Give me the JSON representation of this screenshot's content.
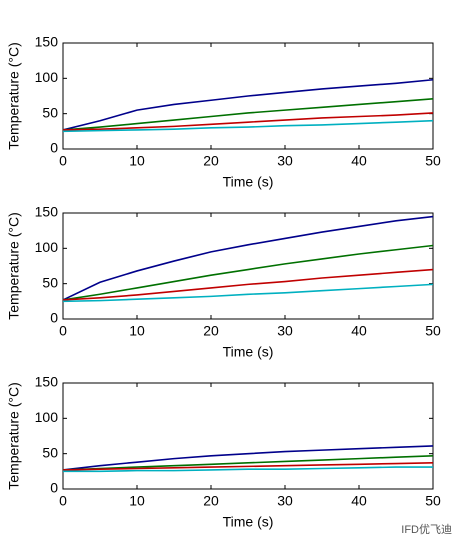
{
  "chart_data": [
    {
      "type": "line",
      "x": [
        0,
        5,
        10,
        15,
        20,
        25,
        30,
        35,
        40,
        45,
        50
      ],
      "xlabel": "Time (s)",
      "ylabel": "Temperature (°C)",
      "xlim": [
        0,
        50
      ],
      "xticks": [
        0,
        10,
        20,
        30,
        40,
        50
      ],
      "ylim": [
        0,
        150
      ],
      "yticks": [
        0,
        50,
        100,
        150
      ],
      "series": [
        {
          "color": "#00008b",
          "values": [
            27,
            40,
            55,
            63,
            69,
            75,
            80,
            85,
            89,
            93,
            98
          ]
        },
        {
          "color": "#007000",
          "values": [
            27,
            31,
            36,
            41,
            46,
            51,
            55,
            59,
            63,
            67,
            71
          ]
        },
        {
          "color": "#c00000",
          "values": [
            27,
            28,
            30,
            32,
            35,
            38,
            41,
            44,
            46,
            48,
            51
          ]
        },
        {
          "color": "#00b0c0",
          "values": [
            25,
            26,
            27,
            28,
            30,
            31,
            33,
            34,
            36,
            38,
            40
          ]
        }
      ]
    },
    {
      "type": "line",
      "x": [
        0,
        5,
        10,
        15,
        20,
        25,
        30,
        35,
        40,
        45,
        50
      ],
      "xlabel": "Time (s)",
      "ylabel": "Temperature (°C)",
      "xlim": [
        0,
        50
      ],
      "xticks": [
        0,
        10,
        20,
        30,
        40,
        50
      ],
      "ylim": [
        0,
        150
      ],
      "yticks": [
        0,
        50,
        100,
        150
      ],
      "series": [
        {
          "color": "#00008b",
          "values": [
            27,
            52,
            68,
            82,
            95,
            105,
            114,
            123,
            131,
            139,
            145
          ]
        },
        {
          "color": "#007000",
          "values": [
            27,
            35,
            44,
            53,
            62,
            70,
            78,
            85,
            92,
            98,
            104
          ]
        },
        {
          "color": "#c00000",
          "values": [
            27,
            30,
            34,
            39,
            44,
            49,
            53,
            58,
            62,
            66,
            70
          ]
        },
        {
          "color": "#00b0c0",
          "values": [
            25,
            26,
            28,
            30,
            32,
            35,
            37,
            40,
            43,
            46,
            49
          ]
        }
      ]
    },
    {
      "type": "line",
      "x": [
        0,
        5,
        10,
        15,
        20,
        25,
        30,
        35,
        40,
        45,
        50
      ],
      "xlabel": "Time (s)",
      "ylabel": "Temperature (°C)",
      "xlim": [
        0,
        50
      ],
      "xticks": [
        0,
        10,
        20,
        30,
        40,
        50
      ],
      "ylim": [
        0,
        150
      ],
      "yticks": [
        0,
        50,
        100,
        150
      ],
      "series": [
        {
          "color": "#00008b",
          "values": [
            27,
            33,
            38,
            43,
            47,
            50,
            53,
            55,
            57,
            59,
            61
          ]
        },
        {
          "color": "#007000",
          "values": [
            27,
            29,
            31,
            33,
            35,
            37,
            39,
            41,
            43,
            45,
            47
          ]
        },
        {
          "color": "#c00000",
          "values": [
            27,
            28,
            29,
            30,
            31,
            32,
            33,
            34,
            35,
            36,
            37
          ]
        },
        {
          "color": "#00b0c0",
          "values": [
            25,
            25,
            26,
            26,
            27,
            28,
            28,
            29,
            30,
            31,
            31
          ]
        }
      ]
    }
  ],
  "watermark": "IFD优飞迪"
}
